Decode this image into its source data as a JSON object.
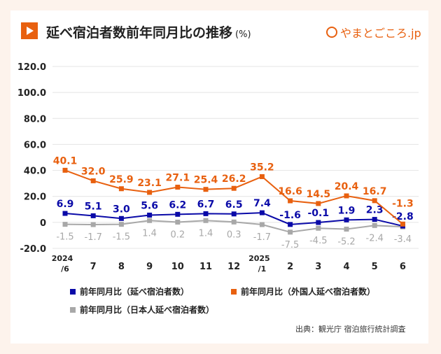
{
  "title": "延べ宿泊者数前年同月比の推移",
  "unit": "(%)",
  "logo": "やまとごころ.jp",
  "source": "出典：観光庁 宿泊旅行統計調査",
  "chart_data": {
    "type": "line",
    "categories": [
      "2024/6",
      "7",
      "8",
      "9",
      "10",
      "11",
      "12",
      "2025/1",
      "2",
      "3",
      "4",
      "5",
      "6"
    ],
    "ylim": [
      -20,
      120
    ],
    "yticks": [
      "120.0",
      "100.0",
      "80.0",
      "60.0",
      "40.0",
      "20.0",
      "0",
      "-20.0"
    ],
    "ytick_values": [
      120,
      100,
      80,
      60,
      40,
      20,
      0,
      -20
    ],
    "grid": true,
    "legend_position": "bottom",
    "series": [
      {
        "name": "前年同月比（延べ宿泊者数）",
        "color": "#0a0aa8",
        "values": [
          6.9,
          5.1,
          3.0,
          5.6,
          6.2,
          6.7,
          6.5,
          7.4,
          -1.6,
          -0.1,
          1.9,
          2.3,
          -2.8
        ],
        "labels": [
          "6.9",
          "5.1",
          "3.0",
          "5.6",
          "6.2",
          "6.7",
          "6.5",
          "7.4",
          "-1.6",
          "-0.1",
          "1.9",
          "2.3",
          "-2.8"
        ]
      },
      {
        "name": "前年同月比（外国人延べ宿泊者数）",
        "color": "#e8600f",
        "values": [
          40.1,
          32.0,
          25.9,
          23.1,
          27.1,
          25.4,
          26.2,
          35.2,
          16.6,
          14.5,
          20.4,
          16.7,
          -1.3
        ],
        "labels": [
          "40.1",
          "32.0",
          "25.9",
          "23.1",
          "27.1",
          "25.4",
          "26.2",
          "35.2",
          "16.6",
          "14.5",
          "20.4",
          "16.7",
          "-1.3"
        ]
      },
      {
        "name": "前年同月比（日本人延べ宿泊者数）",
        "color": "#a8a8a8",
        "values": [
          -1.5,
          -1.7,
          -1.5,
          1.4,
          0.2,
          1.4,
          0.3,
          -1.7,
          -7.5,
          -4.5,
          -5.2,
          -2.4,
          -3.4
        ],
        "labels": [
          "-1.5",
          "-1.7",
          "-1.5",
          "1.4",
          "0.2",
          "1.4",
          "0.3",
          "-1.7",
          "-7.5",
          "-4.5",
          "-5.2",
          "-2.4",
          "-3.4"
        ]
      }
    ]
  }
}
